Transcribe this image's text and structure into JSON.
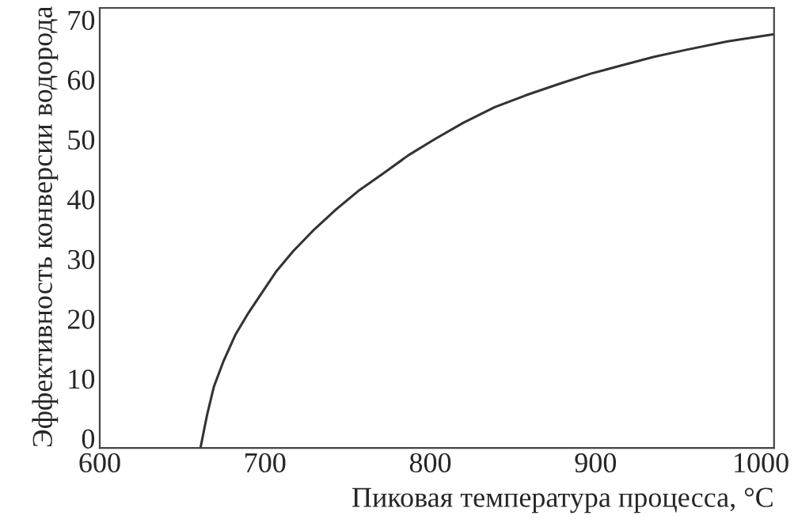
{
  "chart_data": {
    "type": "line",
    "xlabel": "Пиковая температура процесса, °C",
    "ylabel": "Эффективность конверсии водорода",
    "series": [
      {
        "color": "#333333",
        "x": [
          661,
          665,
          669,
          675,
          682,
          690,
          698,
          707,
          717,
          730,
          743,
          757,
          772,
          787,
          803,
          820,
          839,
          858,
          878,
          897,
          916,
          935,
          955,
          980,
          1008
        ],
        "values": [
          -1.5,
          4,
          8.6,
          13,
          17.3,
          21,
          24.3,
          28,
          31.3,
          35,
          38.3,
          41.5,
          44.4,
          47.4,
          50.1,
          52.8,
          55.4,
          57.4,
          59.3,
          61,
          62.4,
          63.8,
          65,
          66.4,
          67.6
        ]
      }
    ],
    "xlim": [
      600,
      1008
    ],
    "xticks": [
      600,
      700,
      800,
      900,
      1000
    ],
    "ylim": [
      -1.6,
      72
    ],
    "yticks": [
      0,
      10,
      20,
      30,
      40,
      50,
      60,
      70
    ],
    "grid": false,
    "marker": "none",
    "line_style": "solid"
  }
}
